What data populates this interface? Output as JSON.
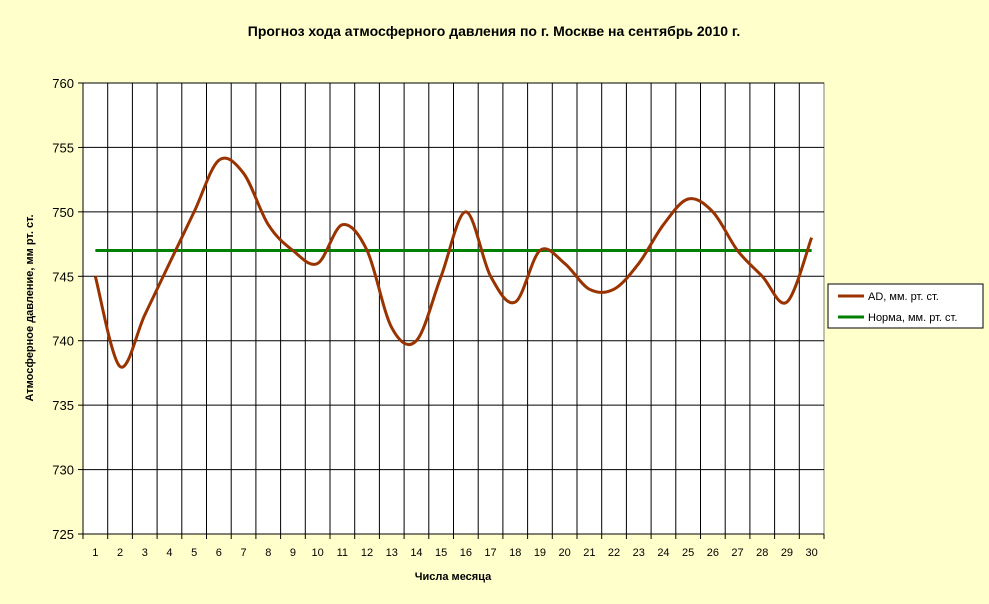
{
  "chart_data": {
    "type": "line",
    "title": "Прогноз хода атмосферного давления по г. Москве на сентябрь 2010 г.",
    "xlabel": "Числа месяца",
    "ylabel": "Атмосферное давление, мм рт. ст.",
    "x": [
      1,
      2,
      3,
      4,
      5,
      6,
      7,
      8,
      9,
      10,
      11,
      12,
      13,
      14,
      15,
      16,
      17,
      18,
      19,
      20,
      21,
      22,
      23,
      24,
      25,
      26,
      27,
      28,
      29,
      30
    ],
    "ylim": [
      725,
      760
    ],
    "yticks": [
      725,
      730,
      735,
      740,
      745,
      750,
      755,
      760
    ],
    "grid": true,
    "legend_position": "right",
    "series": [
      {
        "name": "AD, мм. рт. ст.",
        "color": "#993300",
        "values": [
          745,
          738,
          742,
          746,
          750,
          754,
          753,
          749,
          747,
          746,
          749,
          747,
          741,
          740,
          745,
          750,
          745,
          743,
          747,
          746,
          744,
          744,
          746,
          749,
          751,
          750,
          747,
          745,
          743,
          748
        ]
      },
      {
        "name": "Норма, мм. рт. ст.",
        "color": "#008000",
        "values": [
          747,
          747,
          747,
          747,
          747,
          747,
          747,
          747,
          747,
          747,
          747,
          747,
          747,
          747,
          747,
          747,
          747,
          747,
          747,
          747,
          747,
          747,
          747,
          747,
          747,
          747,
          747,
          747,
          747,
          747
        ]
      }
    ]
  }
}
